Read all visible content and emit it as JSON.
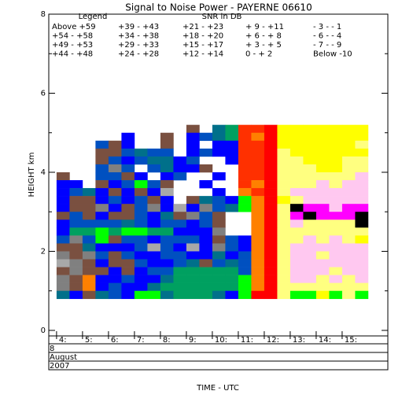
{
  "chart_data": {
    "type": "heatmap",
    "title": "Signal to Noise Power - PAYERNE 06610",
    "legend_title": "Legend",
    "legend_subtitle": "SNR in DB",
    "xlabel": "TIME - UTC",
    "ylabel": "HEIGHT km",
    "date": [
      "8",
      "August",
      "2007"
    ],
    "legend": [
      {
        "label": "Above +59",
        "min": 59,
        "color": "#000000"
      },
      {
        "label": "+54 - +58",
        "min": 54,
        "color": "#101010"
      },
      {
        "label": "+49 - +53",
        "min": 49,
        "color": "#ff00ff"
      },
      {
        "label": "+44 - +48",
        "min": 44,
        "color": "#ffc8f0"
      },
      {
        "label": "+39 - +43",
        "min": 39,
        "color": "#ffff00"
      },
      {
        "label": "+34 - +38",
        "min": 34,
        "color": "#ffff80"
      },
      {
        "label": "+29 - +33",
        "min": 29,
        "color": "#ff0000"
      },
      {
        "label": "+24 - +28",
        "min": 24,
        "color": "#e00000"
      },
      {
        "label": "+21 - +23",
        "min": 21,
        "color": "#ff3000"
      },
      {
        "label": "+18 - +20",
        "min": 18,
        "color": "#ff8000"
      },
      {
        "label": "+15 - +17",
        "min": 15,
        "color": "#00ff00"
      },
      {
        "label": "+12 - +14",
        "min": 12,
        "color": "#00d040"
      },
      {
        "label": "+ 9 - +11",
        "min": 9,
        "color": "#00a060"
      },
      {
        "label": "+ 6 - + 8",
        "min": 6,
        "color": "#00708a"
      },
      {
        "label": "+ 3 - + 5",
        "min": 3,
        "color": "#0050c0"
      },
      {
        "label": "0 - + 2",
        "min": 0,
        "color": "#0000ff"
      },
      {
        "label": "- 3 - - 1",
        "min": -3,
        "color": "#7a5040"
      },
      {
        "label": "- 6 - - 4",
        "min": -6,
        "color": "#808080"
      },
      {
        "label": "- 7 - - 9",
        "min": -9,
        "color": "#a8a8a8"
      },
      {
        "label": "Below -10",
        "min": null,
        "color": "#c0c0c0"
      }
    ],
    "xlim": [
      3.7,
      16.76
    ],
    "xticks": [
      {
        "value": 4,
        "label": "4:"
      },
      {
        "value": 5,
        "label": "5:"
      },
      {
        "value": 6,
        "label": "6:"
      },
      {
        "value": 7,
        "label": "7:"
      },
      {
        "value": 8,
        "label": "8:"
      },
      {
        "value": 9,
        "label": "9:"
      },
      {
        "value": 10,
        "label": "10:"
      },
      {
        "value": 11,
        "label": "11:"
      },
      {
        "value": 12,
        "label": "12:"
      },
      {
        "value": 13,
        "label": "13:"
      },
      {
        "value": 14,
        "label": "14:"
      },
      {
        "value": 15,
        "label": "15:"
      }
    ],
    "ylim": [
      -0.14,
      8
    ],
    "yticks": [
      0,
      2,
      4,
      6,
      8
    ],
    "x": [
      4.0,
      4.5,
      5.0,
      5.5,
      6.0,
      6.5,
      7.0,
      7.5,
      8.0,
      8.5,
      9.0,
      9.5,
      10.0,
      10.5,
      11.0,
      11.5,
      12.0,
      12.5,
      13.0,
      13.5,
      14.0,
      14.5,
      15.0,
      15.5
    ],
    "y": [
      5.0,
      4.8,
      4.6,
      4.4,
      4.2,
      4.0,
      3.8,
      3.6,
      3.4,
      3.2,
      3.0,
      2.8,
      2.6,
      2.4,
      2.2,
      2.0,
      1.8,
      1.6,
      1.4,
      1.2,
      1.0,
      0.8
    ],
    "values": [
      [
        null,
        null,
        null,
        null,
        null,
        null,
        null,
        null,
        null,
        null,
        -2,
        null,
        7,
        10,
        22,
        22,
        30,
        40,
        40,
        40,
        40,
        40,
        40,
        40
      ],
      [
        null,
        null,
        null,
        null,
        null,
        1,
        null,
        null,
        -2,
        null,
        1,
        4,
        7,
        10,
        22,
        19,
        30,
        40,
        40,
        40,
        40,
        40,
        40,
        40
      ],
      [
        null,
        null,
        null,
        4,
        -2,
        1,
        null,
        null,
        -2,
        null,
        1,
        null,
        1,
        1,
        22,
        22,
        30,
        40,
        40,
        40,
        40,
        40,
        40,
        35
      ],
      [
        null,
        null,
        null,
        -2,
        -2,
        4,
        7,
        4,
        4,
        null,
        1,
        4,
        1,
        1,
        22,
        22,
        30,
        35,
        40,
        40,
        40,
        40,
        40,
        40
      ],
      [
        null,
        null,
        null,
        -2,
        4,
        1,
        4,
        7,
        7,
        1,
        4,
        null,
        null,
        1,
        22,
        22,
        30,
        35,
        35,
        40,
        40,
        40,
        35,
        35
      ],
      [
        null,
        null,
        null,
        4,
        -5,
        4,
        null,
        4,
        7,
        1,
        1,
        -2,
        null,
        null,
        22,
        22,
        30,
        35,
        35,
        35,
        40,
        40,
        35,
        35
      ],
      [
        -2,
        null,
        null,
        4,
        4,
        -2,
        1,
        null,
        1,
        4,
        null,
        null,
        1,
        null,
        22,
        22,
        30,
        35,
        35,
        35,
        35,
        35,
        35,
        45
      ],
      [
        1,
        1,
        null,
        -2,
        1,
        4,
        16,
        4,
        -2,
        null,
        null,
        1,
        null,
        null,
        22,
        19,
        30,
        35,
        35,
        35,
        45,
        35,
        45,
        45
      ],
      [
        1,
        4,
        7,
        1,
        -2,
        1,
        -2,
        1,
        -8,
        null,
        null,
        null,
        1,
        null,
        19,
        22,
        30,
        35,
        45,
        45,
        45,
        45,
        45,
        45
      ],
      [
        1,
        -2,
        -2,
        1,
        4,
        1,
        4,
        -2,
        1,
        null,
        -2,
        7,
        4,
        1,
        16,
        19,
        30,
        40,
        35,
        45,
        45,
        45,
        45,
        45
      ],
      [
        1,
        -2,
        -2,
        -5,
        1,
        -2,
        4,
        -5,
        1,
        -8,
        1,
        -5,
        4,
        7,
        16,
        19,
        30,
        35,
        60,
        50,
        50,
        45,
        50,
        50
      ],
      [
        -2,
        4,
        -2,
        1,
        -2,
        -2,
        4,
        1,
        7,
        -2,
        -5,
        4,
        -2,
        null,
        null,
        19,
        30,
        35,
        50,
        60,
        50,
        50,
        50,
        60
      ],
      [
        1,
        4,
        4,
        4,
        4,
        7,
        4,
        1,
        4,
        4,
        1,
        4,
        -2,
        null,
        null,
        19,
        30,
        35,
        45,
        35,
        35,
        35,
        35,
        60
      ],
      [
        1,
        10,
        10,
        16,
        10,
        16,
        16,
        10,
        10,
        1,
        1,
        1,
        -5,
        null,
        null,
        19,
        30,
        35,
        35,
        35,
        35,
        35,
        35,
        35
      ],
      [
        4,
        -5,
        4,
        16,
        -2,
        4,
        4,
        1,
        4,
        4,
        4,
        1,
        -2,
        4,
        1,
        19,
        30,
        35,
        35,
        45,
        35,
        45,
        35,
        40
      ],
      [
        -2,
        -2,
        7,
        1,
        1,
        1,
        4,
        -8,
        4,
        1,
        -8,
        1,
        -5,
        4,
        1,
        19,
        30,
        35,
        45,
        45,
        45,
        45,
        45,
        45
      ],
      [
        -5,
        -2,
        -5,
        4,
        -2,
        4,
        1,
        1,
        4,
        4,
        1,
        1,
        7,
        1,
        4,
        19,
        30,
        35,
        45,
        45,
        35,
        45,
        45,
        45
      ],
      [
        -8,
        -5,
        -2,
        1,
        -2,
        -2,
        4,
        1,
        1,
        4,
        7,
        -2,
        4,
        7,
        4,
        19,
        30,
        35,
        45,
        45,
        45,
        45,
        45,
        45
      ],
      [
        -2,
        -5,
        -2,
        -2,
        1,
        -2,
        1,
        4,
        4,
        10,
        10,
        10,
        10,
        10,
        4,
        19,
        30,
        35,
        45,
        45,
        45,
        35,
        45,
        45
      ],
      [
        -5,
        -2,
        19,
        1,
        1,
        4,
        1,
        1,
        7,
        10,
        10,
        10,
        10,
        10,
        16,
        19,
        30,
        35,
        45,
        45,
        35,
        45,
        35,
        45
      ],
      [
        -5,
        -2,
        19,
        1,
        4,
        1,
        1,
        7,
        10,
        10,
        10,
        10,
        10,
        10,
        16,
        19,
        30,
        35,
        35,
        35,
        35,
        35,
        35,
        35
      ],
      [
        7,
        1,
        -2,
        7,
        4,
        1,
        16,
        16,
        7,
        10,
        10,
        10,
        7,
        1,
        16,
        30,
        30,
        35,
        16,
        16,
        40,
        16,
        35,
        16
      ]
    ]
  }
}
